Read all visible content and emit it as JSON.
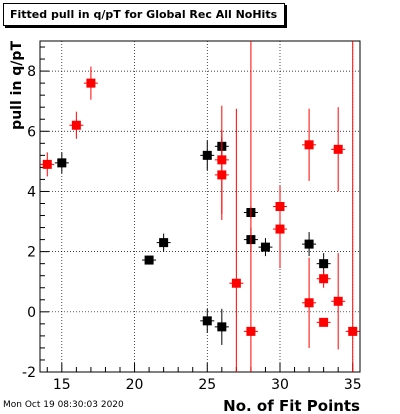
{
  "title": "Fitted pull in q/pT for Global Rec All NoHits",
  "timestamp": "Mon Oct 19 08:30:03 2020",
  "chart_data": {
    "type": "scatter",
    "xlabel": "No. of Fit Points",
    "ylabel": "pull in q/pT",
    "xlim": [
      13.5,
      35.5
    ],
    "ylim": [
      -2,
      9
    ],
    "xticks": [
      15,
      20,
      25,
      30,
      35
    ],
    "yticks": [
      -2,
      0,
      2,
      4,
      6,
      8
    ],
    "grid": true,
    "colors": {
      "black": "#000000",
      "red": "#ff0000"
    },
    "series": [
      {
        "color": "black",
        "points": [
          {
            "x": 15,
            "y": 4.95,
            "err": 0.35
          },
          {
            "x": 21,
            "y": 1.72,
            "err": 0.1
          },
          {
            "x": 22,
            "y": 2.3,
            "err": 0.3
          },
          {
            "x": 25,
            "y": 5.2,
            "err": 0.5
          },
          {
            "x": 25,
            "y": -0.3,
            "err": 0.4
          },
          {
            "x": 26,
            "y": 5.5,
            "err": 0.3
          },
          {
            "x": 26,
            "y": -0.5,
            "err": 0.6
          },
          {
            "x": 28,
            "y": 3.3,
            "err": 0.2
          },
          {
            "x": 28,
            "y": 2.4,
            "err": 0.4
          },
          {
            "x": 29,
            "y": 2.15,
            "err": 0.3
          },
          {
            "x": 32,
            "y": 2.25,
            "err": 0.4
          },
          {
            "x": 33,
            "y": 1.6,
            "err": 0.35
          }
        ]
      },
      {
        "color": "red",
        "points": [
          {
            "x": 14,
            "y": 4.9,
            "err": 0.4
          },
          {
            "x": 16,
            "y": 6.2,
            "err": 0.45
          },
          {
            "x": 17,
            "y": 7.6,
            "err": 0.55
          },
          {
            "x": 26,
            "y": 5.05,
            "err": 1.8
          },
          {
            "x": 26,
            "y": 4.55,
            "err": 1.5
          },
          {
            "x": 27,
            "y": 0.95,
            "err": 5.8
          },
          {
            "x": 28,
            "y": -0.65,
            "err": 9.7
          },
          {
            "x": 30,
            "y": 3.5,
            "err": 0.7
          },
          {
            "x": 30,
            "y": 2.75,
            "err": 1.3
          },
          {
            "x": 32,
            "y": 5.55,
            "err": 1.2
          },
          {
            "x": 32,
            "y": 0.3,
            "err": 1.5
          },
          {
            "x": 33,
            "y": 1.1,
            "err": 0.3
          },
          {
            "x": 33,
            "y": -0.35,
            "err": 0.1
          },
          {
            "x": 34,
            "y": 5.4,
            "err": 1.4
          },
          {
            "x": 34,
            "y": 0.35,
            "err": 1.6
          },
          {
            "x": 35,
            "y": -0.65,
            "err": 9.7
          }
        ]
      }
    ]
  }
}
